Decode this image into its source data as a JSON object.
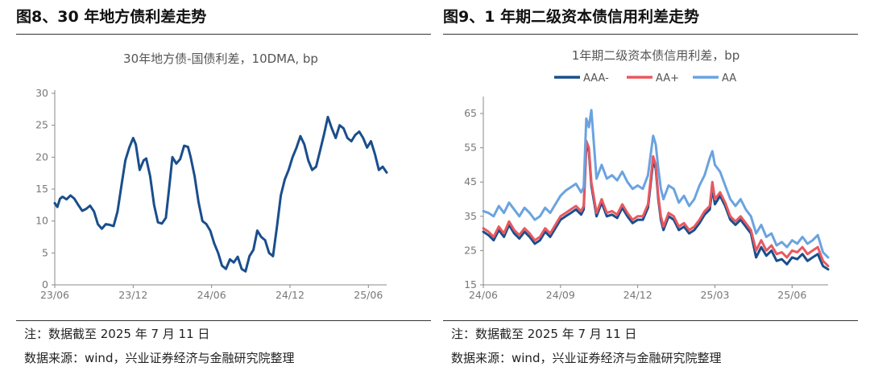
{
  "panels": [
    {
      "heading": "图8、30 年地方债利差走势",
      "note": "注：数据截至 2025 年 7 月 11 日",
      "source": "数据来源：wind，兴业证券经济与金融研究院整理"
    },
    {
      "heading": "图9、1 年期二级资本债信用利差走势",
      "note": "注：数据截至 2025 年 7 月 11 日",
      "source": "数据来源：wind，兴业证券经济与金融研究院整理"
    }
  ],
  "chart_data": [
    {
      "type": "line",
      "title": "30年地方债-国债利差，10DMA, bp",
      "xlabel": "",
      "ylabel": "",
      "ylim": [
        0,
        30
      ],
      "yticks": [
        0,
        5,
        10,
        15,
        20,
        25,
        30
      ],
      "xlim": [
        0,
        25.4
      ],
      "xticks": [
        {
          "label": "23/06",
          "pos": 0
        },
        {
          "label": "23/12",
          "pos": 6
        },
        {
          "label": "24/06",
          "pos": 12
        },
        {
          "label": "24/12",
          "pos": 18
        },
        {
          "label": "25/06",
          "pos": 24
        }
      ],
      "grid": false,
      "series": [
        {
          "name": "30年地方债-国债利差",
          "color": "#1a4e8c",
          "x": [
            0,
            0.2,
            0.4,
            0.6,
            0.9,
            1.2,
            1.5,
            1.8,
            2.1,
            2.4,
            2.7,
            3.0,
            3.3,
            3.6,
            3.9,
            4.2,
            4.5,
            4.8,
            5.1,
            5.4,
            5.7,
            6.0,
            6.2,
            6.5,
            6.8,
            7.0,
            7.3,
            7.6,
            7.9,
            8.2,
            8.5,
            8.8,
            9.0,
            9.3,
            9.6,
            9.9,
            10.2,
            10.4,
            10.7,
            11.0,
            11.3,
            11.6,
            11.9,
            12.2,
            12.5,
            12.8,
            13.1,
            13.4,
            13.7,
            14.0,
            14.3,
            14.6,
            14.9,
            15.2,
            15.5,
            15.8,
            16.1,
            16.4,
            16.7,
            17.0,
            17.3,
            17.6,
            17.9,
            18.2,
            18.5,
            18.8,
            19.1,
            19.4,
            19.7,
            20.0,
            20.3,
            20.6,
            20.9,
            21.2,
            21.5,
            21.8,
            22.1,
            22.4,
            22.7,
            23.0,
            23.3,
            23.6,
            23.9,
            24.2,
            24.5,
            24.8,
            25.1,
            25.4
          ],
          "values": [
            12.8,
            12.2,
            13.5,
            13.8,
            13.4,
            14.0,
            13.5,
            12.5,
            11.6,
            11.9,
            12.4,
            11.5,
            9.5,
            8.8,
            9.5,
            9.4,
            9.2,
            11.5,
            15.5,
            19.5,
            21.5,
            23.0,
            22.0,
            18.0,
            19.5,
            19.8,
            17.0,
            12.5,
            9.8,
            9.6,
            10.5,
            16.0,
            20.0,
            19.0,
            19.7,
            21.8,
            21.6,
            20.0,
            17.0,
            13.0,
            10.0,
            9.5,
            8.5,
            6.5,
            5.0,
            3.0,
            2.5,
            4.0,
            3.5,
            4.4,
            2.5,
            2.1,
            4.5,
            5.5,
            8.5,
            7.5,
            7.0,
            5.0,
            4.5,
            9.0,
            14.0,
            16.5,
            18.0,
            20.0,
            21.5,
            23.3,
            22.0,
            19.5,
            18.0,
            18.5,
            21.0,
            23.5,
            26.3,
            24.5,
            23.0,
            25.0,
            24.5,
            23.0,
            22.5,
            23.5,
            24.0,
            23.0,
            21.5,
            22.5,
            20.5,
            18.0,
            18.5,
            17.6
          ]
        }
      ]
    },
    {
      "type": "line",
      "title": "1年期二级资本债信用利差，bp",
      "xlabel": "",
      "ylabel": "",
      "ylim": [
        15,
        69
      ],
      "yticks": [
        15,
        25,
        35,
        45,
        55,
        65
      ],
      "xlim": [
        0,
        13.4
      ],
      "xticks": [
        {
          "label": "24/06",
          "pos": 0
        },
        {
          "label": "24/09",
          "pos": 3
        },
        {
          "label": "24/12",
          "pos": 6
        },
        {
          "label": "25/03",
          "pos": 9
        },
        {
          "label": "25/06",
          "pos": 12
        }
      ],
      "grid": false,
      "legend_position": "top",
      "x": [
        0,
        0.2,
        0.4,
        0.6,
        0.8,
        1.0,
        1.2,
        1.4,
        1.6,
        1.8,
        2.0,
        2.2,
        2.4,
        2.6,
        2.8,
        3.0,
        3.2,
        3.4,
        3.6,
        3.8,
        3.9,
        4.0,
        4.1,
        4.2,
        4.4,
        4.6,
        4.8,
        5.0,
        5.2,
        5.4,
        5.6,
        5.8,
        6.0,
        6.2,
        6.4,
        6.6,
        6.7,
        6.8,
        6.9,
        7.0,
        7.2,
        7.4,
        7.6,
        7.8,
        8.0,
        8.2,
        8.4,
        8.6,
        8.8,
        8.9,
        9.0,
        9.2,
        9.4,
        9.6,
        9.8,
        10.0,
        10.2,
        10.4,
        10.6,
        10.8,
        11.0,
        11.2,
        11.4,
        11.6,
        11.8,
        12.0,
        12.2,
        12.4,
        12.6,
        12.8,
        13.0,
        13.2,
        13.4
      ],
      "series": [
        {
          "name": "AAA-",
          "color": "#1a4e8c",
          "values": [
            30.5,
            29.5,
            28.0,
            31.0,
            29.0,
            32.5,
            30.0,
            28.5,
            30.5,
            29.0,
            27.0,
            28.0,
            30.5,
            29.0,
            31.5,
            34.0,
            35.0,
            36.0,
            37.0,
            35.5,
            37.0,
            55.5,
            54.0,
            44.0,
            35.0,
            39.0,
            35.0,
            35.5,
            34.5,
            37.5,
            35.0,
            33.0,
            34.0,
            34.0,
            37.5,
            51.0,
            49.0,
            40.0,
            34.0,
            31.0,
            35.0,
            34.0,
            31.0,
            32.0,
            30.0,
            31.0,
            33.0,
            35.5,
            37.0,
            43.0,
            38.5,
            41.0,
            38.0,
            34.0,
            32.5,
            34.0,
            32.0,
            30.0,
            23.0,
            26.0,
            23.5,
            25.0,
            22.0,
            22.5,
            21.0,
            23.0,
            22.5,
            24.0,
            22.0,
            23.0,
            24.0,
            20.5,
            19.5
          ]
        },
        {
          "name": "AA+",
          "color": "#e8585f",
          "values": [
            31.5,
            30.5,
            29.0,
            32.0,
            30.0,
            33.5,
            31.0,
            29.5,
            31.5,
            30.0,
            28.0,
            29.0,
            31.5,
            30.0,
            32.5,
            35.0,
            36.0,
            37.0,
            38.0,
            36.5,
            38.0,
            57.0,
            55.0,
            45.0,
            36.0,
            40.0,
            36.0,
            36.5,
            35.5,
            38.5,
            36.0,
            34.0,
            35.0,
            35.0,
            38.5,
            52.5,
            50.0,
            41.0,
            35.0,
            32.0,
            36.0,
            35.0,
            32.0,
            33.0,
            31.0,
            32.0,
            34.0,
            36.5,
            38.0,
            45.0,
            40.0,
            42.0,
            39.0,
            35.0,
            33.5,
            35.0,
            33.0,
            31.0,
            25.0,
            28.0,
            25.0,
            26.5,
            24.0,
            24.5,
            23.0,
            25.0,
            24.5,
            26.0,
            24.0,
            25.0,
            26.0,
            22.0,
            20.5
          ]
        },
        {
          "name": "AA",
          "color": "#6aa3e0",
          "values": [
            36.5,
            36.0,
            35.0,
            38.0,
            36.0,
            39.0,
            37.0,
            35.0,
            37.5,
            36.0,
            34.0,
            35.0,
            37.5,
            36.0,
            38.5,
            41.0,
            42.5,
            43.5,
            44.5,
            42.0,
            43.5,
            63.5,
            61.0,
            66.0,
            46.0,
            50.0,
            46.0,
            47.0,
            45.5,
            48.0,
            45.0,
            43.0,
            44.0,
            43.0,
            47.0,
            58.5,
            56.0,
            49.0,
            43.0,
            40.0,
            44.0,
            43.0,
            39.0,
            41.0,
            38.0,
            40.0,
            44.0,
            47.0,
            52.0,
            54.0,
            50.0,
            48.0,
            44.0,
            40.0,
            38.0,
            40.0,
            37.0,
            35.0,
            30.0,
            32.5,
            29.0,
            30.0,
            26.5,
            27.5,
            26.0,
            28.0,
            27.0,
            29.0,
            27.0,
            28.0,
            29.5,
            24.5,
            23.0
          ]
        }
      ]
    }
  ]
}
